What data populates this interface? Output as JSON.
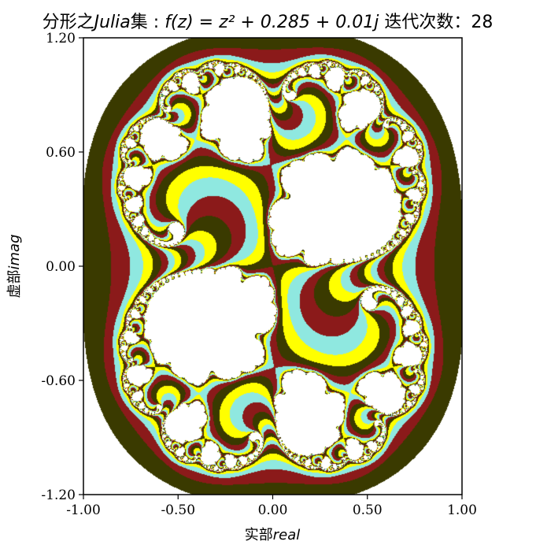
{
  "chart_data": {
    "type": "heatmap",
    "title_prefix": "分形之",
    "title_name": "Julia",
    "title_mid": "集 : ",
    "title_formula": "f(z) = z² + 0.285 + 0.01j",
    "title_suffix": " 迭代次数：28",
    "xlabel_cn": "实部",
    "xlabel_en": "real",
    "ylabel_cn": "虚部",
    "ylabel_en": "imag",
    "xlim": [
      -1.0,
      1.0
    ],
    "ylim": [
      -1.2,
      1.2
    ],
    "xticks": [
      -1.0,
      -0.5,
      0.0,
      0.5,
      1.0
    ],
    "xtick_labels": [
      "-1.00",
      "-0.50",
      "0.00",
      "0.50",
      "1.00"
    ],
    "yticks": [
      -1.2,
      -0.6,
      0.0,
      0.6,
      1.2
    ],
    "ytick_labels": [
      "-1.20",
      "-0.60",
      "0.00",
      "0.60",
      "1.20"
    ],
    "c_real": 0.285,
    "c_imag": 0.01,
    "iterations": 28,
    "grid": false,
    "colormap": [
      "#8b1a1a",
      "#a63a30",
      "#c0a090",
      "#8fe8e0",
      "#40e0d0",
      "#2e8b57",
      "#ffff00",
      "#d4d400",
      "#7a7a00",
      "#3a3a00",
      "#ff00ff",
      "#8b008b"
    ]
  }
}
